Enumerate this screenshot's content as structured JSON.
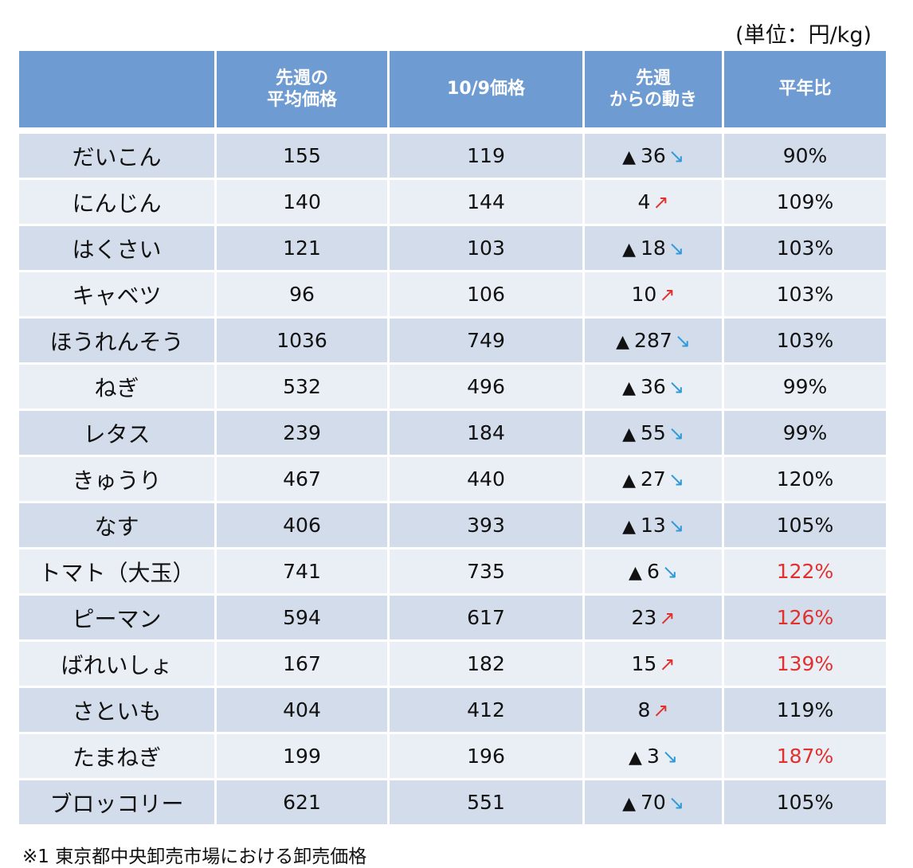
{
  "unit_label": "(単位：円/kg)",
  "headers": {
    "col1_line1": "先週の",
    "col1_line2": "平均価格",
    "col2": "10/9価格",
    "col3_line1": "先週",
    "col3_line2": "からの動き",
    "col4": "平年比"
  },
  "rows": [
    {
      "name": "だいこん",
      "avg": "155",
      "price": "119",
      "change": "36",
      "ratio": "90%"
    },
    {
      "name": "にんじん",
      "avg": "140",
      "price": "144",
      "change": "4",
      "ratio": "109%"
    },
    {
      "name": "はくさい",
      "avg": "121",
      "price": "103",
      "change": "18",
      "ratio": "103%"
    },
    {
      "name": "キャベツ",
      "avg": "96",
      "price": "106",
      "change": "10",
      "ratio": "103%"
    },
    {
      "name": "ほうれんそう",
      "avg": "1036",
      "price": "749",
      "change": "287",
      "ratio": "103%"
    },
    {
      "name": "ねぎ",
      "avg": "532",
      "price": "496",
      "change": "36",
      "ratio": "99%"
    },
    {
      "name": "レタス",
      "avg": "239",
      "price": "184",
      "change": "55",
      "ratio": "99%"
    },
    {
      "name": "きゅうり",
      "avg": "467",
      "price": "440",
      "change": "27",
      "ratio": "120%"
    },
    {
      "name": "なす",
      "avg": "406",
      "price": "393",
      "change": "13",
      "ratio": "105%"
    },
    {
      "name": "トマト（大玉）",
      "avg": "741",
      "price": "735",
      "change": "6",
      "ratio": "122%"
    },
    {
      "name": "ピーマン",
      "avg": "594",
      "price": "617",
      "change": "23",
      "ratio": "126%"
    },
    {
      "name": "ばれいしょ",
      "avg": "167",
      "price": "182",
      "change": "15",
      "ratio": "139%"
    },
    {
      "name": "さといも",
      "avg": "404",
      "price": "412",
      "change": "8",
      "ratio": "119%"
    },
    {
      "name": "たまねぎ",
      "avg": "199",
      "price": "196",
      "change": "3",
      "ratio": "187%"
    },
    {
      "name": "ブロッコリー",
      "avg": "621",
      "price": "551",
      "change": "70",
      "ratio": "105%"
    }
  ],
  "decrease_symbol": "▲",
  "arrow_down": "↘",
  "arrow_up": "↗",
  "row_meta": [
    {
      "dir": "down",
      "highlight": false
    },
    {
      "dir": "up",
      "highlight": false
    },
    {
      "dir": "down",
      "highlight": false
    },
    {
      "dir": "up",
      "highlight": false
    },
    {
      "dir": "down",
      "highlight": false
    },
    {
      "dir": "down",
      "highlight": false
    },
    {
      "dir": "down",
      "highlight": false
    },
    {
      "dir": "down",
      "highlight": false
    },
    {
      "dir": "down",
      "highlight": false
    },
    {
      "dir": "down",
      "highlight": true
    },
    {
      "dir": "up",
      "highlight": true
    },
    {
      "dir": "up",
      "highlight": true
    },
    {
      "dir": "up",
      "highlight": false
    },
    {
      "dir": "down",
      "highlight": true
    },
    {
      "dir": "down",
      "highlight": false
    }
  ],
  "colors": {
    "header_bg": "#6d9bd2",
    "row_dark": "#d3dcea",
    "row_light": "#eaeef5",
    "arrow_down": "#2f9ad9",
    "arrow_up": "#e0312e",
    "highlight": "#e0312e"
  },
  "footnote": "※1 東京都中央卸売市場における卸売価格"
}
